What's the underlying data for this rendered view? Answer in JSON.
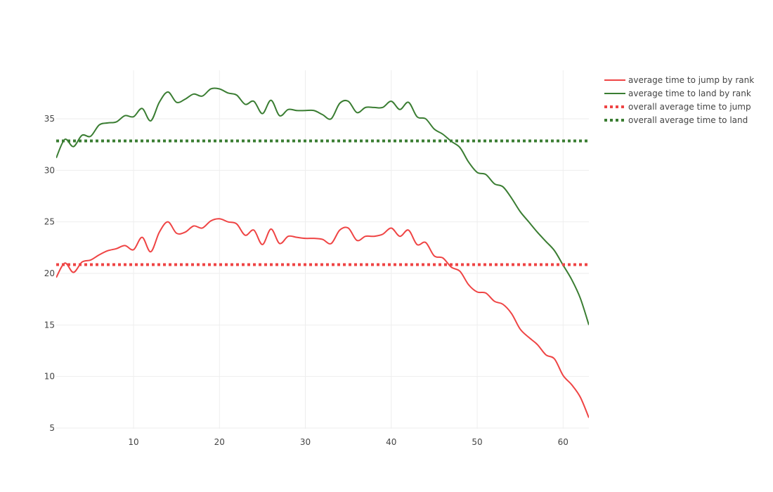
{
  "chart_data": {
    "type": "line",
    "title": "",
    "xlabel": "",
    "ylabel": "",
    "xlim": [
      1,
      63
    ],
    "ylim": [
      5,
      38
    ],
    "x_ticks": [
      10,
      20,
      30,
      40,
      50,
      60
    ],
    "y_ticks": [
      5,
      10,
      15,
      20,
      25,
      30,
      35
    ],
    "grid": true,
    "legend_position": "top-right",
    "x": [
      1,
      2,
      3,
      4,
      5,
      6,
      7,
      8,
      9,
      10,
      11,
      12,
      13,
      14,
      15,
      16,
      17,
      18,
      19,
      20,
      21,
      22,
      23,
      24,
      25,
      26,
      27,
      28,
      29,
      30,
      31,
      32,
      33,
      34,
      35,
      36,
      37,
      38,
      39,
      40,
      41,
      42,
      43,
      44,
      45,
      46,
      47,
      48,
      49,
      50,
      51,
      52,
      53,
      54,
      55,
      56,
      57,
      58,
      59,
      60,
      61,
      62,
      63
    ],
    "series": [
      {
        "name": "average time to jump by rank",
        "color": "#ef4444",
        "dash": "solid",
        "values": [
          19.6,
          21.0,
          20.1,
          21.1,
          21.3,
          21.8,
          22.2,
          22.4,
          22.7,
          22.3,
          23.5,
          22.1,
          24.0,
          25.0,
          23.9,
          24.0,
          24.6,
          24.4,
          25.1,
          25.3,
          25.0,
          24.8,
          23.7,
          24.2,
          22.8,
          24.3,
          22.9,
          23.6,
          23.5,
          23.4,
          23.4,
          23.3,
          22.9,
          24.2,
          24.4,
          23.2,
          23.6,
          23.6,
          23.8,
          24.4,
          23.6,
          24.2,
          22.8,
          23.0,
          21.7,
          21.5,
          20.6,
          20.2,
          18.9,
          18.2,
          18.1,
          17.3,
          17.0,
          16.1,
          14.6,
          13.8,
          13.1,
          12.1,
          11.7,
          10.1,
          9.2,
          8.0,
          6.0
        ]
      },
      {
        "name": "average time to land by rank",
        "color": "#3a7d32",
        "dash": "solid",
        "values": [
          31.2,
          33.0,
          32.3,
          33.4,
          33.3,
          34.4,
          34.6,
          34.7,
          35.3,
          35.2,
          36.0,
          34.8,
          36.6,
          37.6,
          36.6,
          36.9,
          37.4,
          37.2,
          37.9,
          37.9,
          37.5,
          37.3,
          36.4,
          36.7,
          35.5,
          36.8,
          35.3,
          35.9,
          35.8,
          35.8,
          35.8,
          35.4,
          35.0,
          36.5,
          36.7,
          35.6,
          36.1,
          36.1,
          36.1,
          36.7,
          35.9,
          36.6,
          35.2,
          35.0,
          34.0,
          33.5,
          32.8,
          32.2,
          30.8,
          29.8,
          29.6,
          28.7,
          28.4,
          27.3,
          26.0,
          25.0,
          24.0,
          23.1,
          22.2,
          20.8,
          19.4,
          17.6,
          15.0
        ]
      },
      {
        "name": "overall average time to jump",
        "color": "#ef4444",
        "dash": "dot",
        "values": [
          20.85,
          20.85,
          20.85,
          20.85,
          20.85,
          20.85,
          20.85,
          20.85,
          20.85,
          20.85,
          20.85,
          20.85,
          20.85,
          20.85,
          20.85,
          20.85,
          20.85,
          20.85,
          20.85,
          20.85,
          20.85,
          20.85,
          20.85,
          20.85,
          20.85,
          20.85,
          20.85,
          20.85,
          20.85,
          20.85,
          20.85,
          20.85,
          20.85,
          20.85,
          20.85,
          20.85,
          20.85,
          20.85,
          20.85,
          20.85,
          20.85,
          20.85,
          20.85,
          20.85,
          20.85,
          20.85,
          20.85,
          20.85,
          20.85,
          20.85,
          20.85,
          20.85,
          20.85,
          20.85,
          20.85,
          20.85,
          20.85,
          20.85,
          20.85,
          20.85,
          20.85,
          20.85,
          20.85
        ]
      },
      {
        "name": "overall average time to land",
        "color": "#3a7d32",
        "dash": "dot",
        "values": [
          32.85,
          32.85,
          32.85,
          32.85,
          32.85,
          32.85,
          32.85,
          32.85,
          32.85,
          32.85,
          32.85,
          32.85,
          32.85,
          32.85,
          32.85,
          32.85,
          32.85,
          32.85,
          32.85,
          32.85,
          32.85,
          32.85,
          32.85,
          32.85,
          32.85,
          32.85,
          32.85,
          32.85,
          32.85,
          32.85,
          32.85,
          32.85,
          32.85,
          32.85,
          32.85,
          32.85,
          32.85,
          32.85,
          32.85,
          32.85,
          32.85,
          32.85,
          32.85,
          32.85,
          32.85,
          32.85,
          32.85,
          32.85,
          32.85,
          32.85,
          32.85,
          32.85,
          32.85,
          32.85,
          32.85,
          32.85,
          32.85,
          32.85,
          32.85,
          32.85,
          32.85,
          32.85,
          32.85
        ]
      }
    ]
  }
}
